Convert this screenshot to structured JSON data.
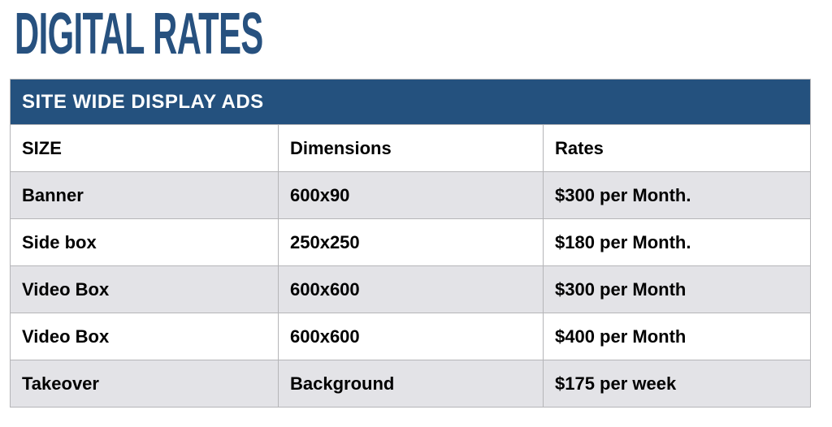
{
  "title": "DIGITAL RATES",
  "table": {
    "section_title": "SITE WIDE DISPLAY ADS",
    "columns": [
      "SIZE",
      "Dimensions",
      "Rates"
    ],
    "rows": [
      {
        "size": "Banner",
        "dimensions": "600x90",
        "rate": "$300 per Month."
      },
      {
        "size": "Side box",
        "dimensions": "250x250",
        "rate": "$180 per Month."
      },
      {
        "size": "Video Box",
        "dimensions": "600x600",
        "rate": "$300 per Month"
      },
      {
        "size": "Video Box",
        "dimensions": "600x600",
        "rate": "$400 per Month"
      },
      {
        "size": "Takeover",
        "dimensions": "Background",
        "rate": "$175 per week"
      }
    ]
  },
  "colors": {
    "header_bg": "#24517e",
    "title_color": "#27517f",
    "row_alt_bg": "#e3e3e7",
    "border_color": "#b5b5b8",
    "header_text": "#ffffff",
    "body_text": "#000000"
  }
}
